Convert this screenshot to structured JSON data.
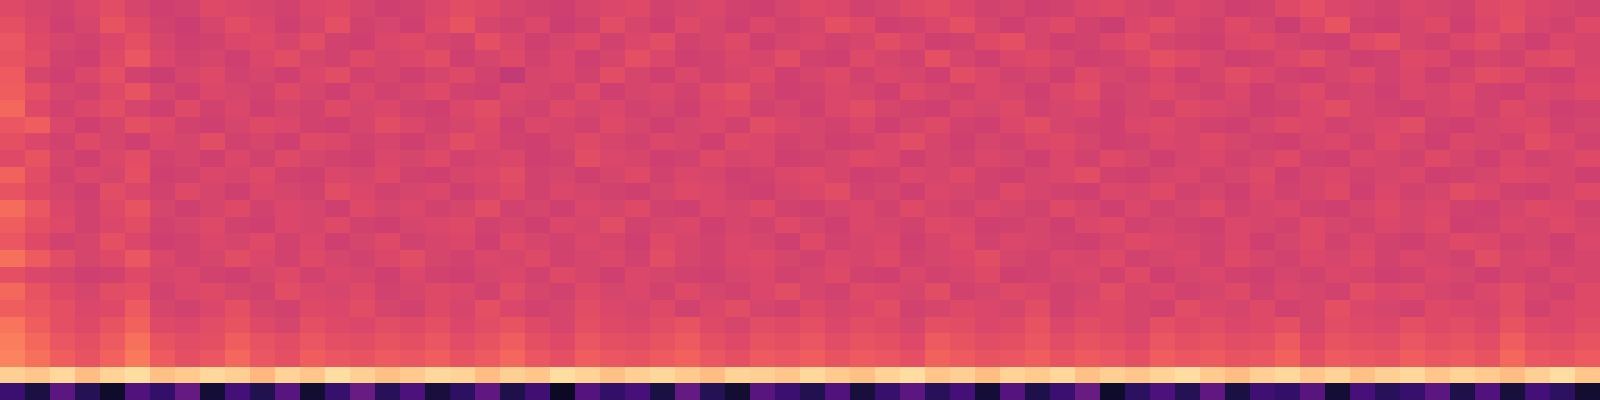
{
  "chart_data": {
    "type": "heatmap",
    "color": "magma",
    "tick_labels": false,
    "zlim": [
      0,
      100
    ],
    "z": [
      [
        60,
        58,
        57,
        59,
        61,
        58,
        56,
        57,
        60,
        59,
        58,
        57,
        59,
        60,
        58,
        56,
        57,
        59,
        61,
        60,
        58,
        57,
        56,
        58,
        59,
        60,
        57,
        58,
        59,
        57,
        56,
        58,
        60,
        59,
        57,
        58,
        60,
        61,
        59,
        57,
        58,
        56,
        57,
        59,
        60,
        58,
        57,
        59,
        58,
        56,
        57,
        60,
        62,
        59,
        58,
        57,
        59,
        58,
        57,
        60,
        61,
        59,
        58,
        57
      ],
      [
        62,
        59,
        56,
        58,
        63,
        60,
        57,
        55,
        58,
        61,
        59,
        56,
        58,
        62,
        57,
        58,
        56,
        60,
        63,
        58,
        57,
        59,
        55,
        57,
        61,
        58,
        56,
        60,
        58,
        56,
        59,
        57,
        58,
        62,
        60,
        56,
        57,
        59,
        62,
        58,
        56,
        58,
        60,
        57,
        55,
        59,
        61,
        58,
        57,
        60,
        58,
        55,
        59,
        63,
        57,
        56,
        58,
        60,
        56,
        59,
        62,
        58,
        57,
        60
      ],
      [
        64,
        60,
        58,
        57,
        59,
        62,
        58,
        56,
        57,
        59,
        60,
        58,
        61,
        57,
        56,
        59,
        60,
        58,
        57,
        62,
        59,
        56,
        58,
        60,
        57,
        59,
        61,
        57,
        58,
        60,
        56,
        58,
        59,
        57,
        58,
        61,
        59,
        56,
        57,
        60,
        62,
        58,
        56,
        57,
        59,
        61,
        58,
        57,
        56,
        59,
        60,
        58,
        57,
        56,
        60,
        62,
        58,
        57,
        59,
        61,
        58,
        56,
        59,
        58
      ],
      [
        63,
        61,
        57,
        56,
        60,
        64,
        59,
        57,
        58,
        56,
        59,
        61,
        58,
        57,
        60,
        58,
        59,
        61,
        56,
        58,
        60,
        57,
        59,
        56,
        58,
        62,
        59,
        56,
        57,
        59,
        58,
        61,
        57,
        56,
        60,
        58,
        57,
        62,
        58,
        56,
        59,
        60,
        58,
        56,
        57,
        59,
        62,
        60,
        58,
        56,
        57,
        59,
        61,
        58,
        56,
        57,
        60,
        59,
        56,
        58,
        57,
        60,
        61,
        58
      ],
      [
        65,
        58,
        56,
        59,
        62,
        57,
        55,
        58,
        60,
        57,
        58,
        56,
        59,
        61,
        57,
        58,
        56,
        58,
        60,
        57,
        53,
        58,
        59,
        57,
        61,
        58,
        56,
        59,
        57,
        58,
        60,
        56,
        58,
        60,
        57,
        59,
        58,
        56,
        61,
        59,
        57,
        58,
        56,
        60,
        58,
        57,
        59,
        56,
        58,
        61,
        59,
        57,
        56,
        58,
        60,
        57,
        59,
        56,
        58,
        61,
        60,
        57,
        56,
        59
      ],
      [
        66,
        62,
        58,
        57,
        60,
        63,
        58,
        56,
        59,
        58,
        57,
        60,
        58,
        56,
        59,
        57,
        58,
        60,
        57,
        56,
        59,
        58,
        57,
        60,
        56,
        58,
        59,
        57,
        60,
        62,
        58,
        56,
        57,
        59,
        58,
        56,
        60,
        58,
        57,
        59,
        58,
        56,
        59,
        61,
        57,
        58,
        60,
        58,
        57,
        59,
        56,
        58,
        60,
        57,
        58,
        56,
        59,
        58,
        60,
        57,
        56,
        59,
        58,
        60
      ],
      [
        68,
        60,
        57,
        59,
        61,
        58,
        56,
        60,
        57,
        59,
        56,
        58,
        57,
        60,
        58,
        59,
        57,
        56,
        59,
        61,
        58,
        57,
        60,
        58,
        59,
        57,
        58,
        56,
        59,
        60,
        57,
        58,
        56,
        59,
        61,
        58,
        57,
        56,
        59,
        58,
        60,
        57,
        58,
        59,
        56,
        58,
        57,
        60,
        59,
        58,
        56,
        57,
        59,
        61,
        58,
        57,
        56,
        58,
        59,
        57,
        60,
        58,
        56,
        57
      ],
      [
        64,
        66,
        59,
        56,
        58,
        62,
        60,
        57,
        56,
        58,
        60,
        59,
        57,
        56,
        58,
        61,
        59,
        57,
        58,
        60,
        56,
        59,
        58,
        57,
        60,
        58,
        56,
        58,
        59,
        57,
        61,
        59,
        58,
        57,
        59,
        56,
        58,
        60,
        57,
        56,
        59,
        61,
        58,
        57,
        56,
        59,
        60,
        58,
        57,
        56,
        58,
        60,
        59,
        57,
        58,
        59,
        61,
        57,
        56,
        58,
        59,
        60,
        57,
        58
      ],
      [
        62,
        59,
        57,
        60,
        58,
        56,
        59,
        58,
        61,
        57,
        58,
        56,
        60,
        59,
        57,
        58,
        56,
        58,
        61,
        59,
        57,
        56,
        58,
        60,
        58,
        57,
        59,
        58,
        56,
        60,
        59,
        57,
        58,
        56,
        57,
        59,
        61,
        58,
        56,
        58,
        57,
        59,
        60,
        58,
        56,
        57,
        59,
        58,
        60,
        58,
        57,
        56,
        58,
        59,
        57,
        60,
        58,
        56,
        59,
        58,
        57,
        61,
        59,
        57
      ],
      [
        60,
        63,
        58,
        56,
        59,
        61,
        57,
        58,
        56,
        59,
        57,
        60,
        58,
        57,
        56,
        59,
        58,
        60,
        57,
        58,
        59,
        56,
        57,
        61,
        59,
        58,
        56,
        57,
        60,
        58,
        59,
        56,
        57,
        58,
        60,
        59,
        56,
        58,
        57,
        59,
        58,
        56,
        59,
        57,
        60,
        58,
        56,
        58,
        59,
        57,
        58,
        60,
        57,
        56,
        59,
        58,
        57,
        60,
        58,
        56,
        59,
        57,
        58,
        60
      ],
      [
        67,
        61,
        57,
        59,
        58,
        62,
        56,
        57,
        59,
        58,
        60,
        57,
        56,
        59,
        58,
        60,
        57,
        56,
        58,
        59,
        61,
        57,
        58,
        56,
        58,
        60,
        57,
        59,
        58,
        56,
        57,
        59,
        60,
        58,
        56,
        57,
        59,
        58,
        60,
        57,
        56,
        58,
        59,
        61,
        57,
        56,
        58,
        59,
        57,
        58,
        60,
        56,
        58,
        59,
        57,
        58,
        59,
        56,
        57,
        58,
        60,
        59,
        58,
        56
      ],
      [
        63,
        60,
        58,
        56,
        61,
        59,
        57,
        60,
        58,
        56,
        59,
        58,
        57,
        61,
        59,
        57,
        58,
        59,
        56,
        58,
        60,
        57,
        59,
        58,
        57,
        56,
        58,
        60,
        59,
        57,
        56,
        58,
        59,
        61,
        57,
        58,
        56,
        59,
        58,
        57,
        60,
        58,
        57,
        56,
        59,
        58,
        60,
        57,
        58,
        56,
        59,
        57,
        58,
        60,
        56,
        59,
        57,
        58,
        61,
        59,
        57,
        56,
        58,
        60
      ],
      [
        69,
        64,
        59,
        57,
        60,
        63,
        58,
        56,
        58,
        60,
        57,
        59,
        58,
        56,
        60,
        58,
        59,
        57,
        58,
        61,
        57,
        58,
        56,
        59,
        58,
        60,
        57,
        56,
        59,
        58,
        60,
        57,
        56,
        58,
        59,
        57,
        60,
        58,
        57,
        59,
        58,
        57,
        60,
        58,
        56,
        59,
        57,
        58,
        60,
        57,
        58,
        59,
        57,
        56,
        58,
        60,
        58,
        59,
        57,
        56,
        58,
        60,
        59,
        57
      ],
      [
        66,
        62,
        60,
        57,
        59,
        61,
        57,
        58,
        60,
        57,
        56,
        59,
        58,
        60,
        57,
        56,
        58,
        59,
        60,
        57,
        58,
        56,
        59,
        58,
        61,
        57,
        58,
        59,
        56,
        58,
        57,
        60,
        58,
        56,
        59,
        58,
        57,
        60,
        59,
        56,
        57,
        58,
        56,
        59,
        60,
        57,
        58,
        57,
        56,
        59,
        58,
        57,
        60,
        58,
        57,
        59,
        58,
        60,
        56,
        57,
        59,
        58,
        60,
        58
      ],
      [
        64,
        60,
        57,
        58,
        62,
        59,
        56,
        57,
        59,
        58,
        60,
        57,
        59,
        56,
        58,
        60,
        57,
        58,
        59,
        56,
        60,
        58,
        57,
        59,
        58,
        56,
        60,
        58,
        57,
        59,
        58,
        56,
        60,
        57,
        58,
        59,
        56,
        58,
        60,
        57,
        59,
        58,
        57,
        56,
        58,
        60,
        59,
        58,
        57,
        59,
        56,
        58,
        60,
        57,
        59,
        57,
        56,
        58,
        60,
        59,
        57,
        58,
        56,
        59
      ],
      [
        70,
        65,
        61,
        58,
        60,
        64,
        59,
        57,
        58,
        61,
        59,
        57,
        60,
        58,
        57,
        59,
        61,
        58,
        57,
        59,
        58,
        60,
        57,
        58,
        59,
        57,
        61,
        58,
        57,
        59,
        60,
        58,
        57,
        59,
        58,
        60,
        57,
        58,
        59,
        61,
        58,
        57,
        59,
        58,
        60,
        57,
        58,
        59,
        57,
        60,
        58,
        57,
        59,
        58,
        60,
        57,
        59,
        58,
        57,
        61,
        58,
        59,
        57,
        58
      ],
      [
        62,
        59,
        58,
        56,
        57,
        60,
        58,
        59,
        57,
        56,
        58,
        60,
        57,
        59,
        58,
        56,
        59,
        57,
        56,
        58,
        59,
        57,
        60,
        58,
        56,
        59,
        58,
        57,
        56,
        58,
        59,
        57,
        58,
        60,
        57,
        56,
        59,
        57,
        58,
        60,
        56,
        57,
        58,
        59,
        57,
        60,
        56,
        58,
        59,
        57,
        56,
        58,
        57,
        59,
        58,
        56,
        57,
        59,
        58,
        56,
        58,
        57,
        59,
        58
      ],
      [
        68,
        63,
        60,
        58,
        61,
        62,
        57,
        59,
        60,
        58,
        57,
        61,
        59,
        58,
        60,
        57,
        58,
        60,
        59,
        57,
        61,
        58,
        57,
        60,
        58,
        59,
        57,
        60,
        58,
        57,
        59,
        61,
        58,
        57,
        60,
        59,
        58,
        61,
        57,
        58,
        60,
        59,
        57,
        58,
        61,
        58,
        59,
        57,
        58,
        60,
        57,
        59,
        58,
        57,
        61,
        59,
        60,
        58,
        57,
        59,
        61,
        58,
        57,
        60
      ],
      [
        66,
        64,
        62,
        59,
        60,
        65,
        58,
        57,
        59,
        62,
        58,
        57,
        60,
        59,
        61,
        58,
        57,
        60,
        58,
        62,
        59,
        57,
        58,
        61,
        59,
        58,
        60,
        57,
        59,
        61,
        58,
        57,
        60,
        58,
        59,
        61,
        57,
        58,
        60,
        59,
        58,
        61,
        57,
        59,
        60,
        58,
        57,
        61,
        59,
        58,
        60,
        57,
        58,
        62,
        59,
        58,
        57,
        60,
        59,
        58,
        61,
        57,
        59,
        60
      ],
      [
        71,
        66,
        62,
        60,
        63,
        67,
        60,
        59,
        61,
        63,
        60,
        58,
        62,
        60,
        59,
        61,
        60,
        62,
        59,
        61,
        63,
        60,
        58,
        62,
        60,
        59,
        61,
        63,
        60,
        58,
        61,
        60,
        62,
        59,
        61,
        60,
        58,
        62,
        61,
        59,
        60,
        63,
        59,
        61,
        60,
        58,
        62,
        60,
        61,
        59,
        60,
        62,
        58,
        61,
        60,
        59,
        62,
        60,
        61,
        59,
        63,
        60,
        59,
        61
      ],
      [
        73,
        68,
        64,
        62,
        65,
        70,
        63,
        61,
        62,
        66,
        63,
        61,
        64,
        62,
        61,
        63,
        62,
        64,
        61,
        63,
        66,
        62,
        60,
        64,
        62,
        61,
        63,
        65,
        62,
        60,
        63,
        62,
        64,
        61,
        63,
        62,
        60,
        65,
        63,
        61,
        62,
        64,
        61,
        63,
        62,
        60,
        64,
        62,
        63,
        61,
        62,
        65,
        60,
        63,
        62,
        61,
        64,
        62,
        63,
        61,
        66,
        62,
        61,
        63
      ],
      [
        74,
        70,
        66,
        63,
        67,
        72,
        65,
        62,
        64,
        68,
        64,
        62,
        66,
        64,
        63,
        65,
        64,
        66,
        63,
        65,
        68,
        64,
        62,
        66,
        64,
        63,
        65,
        67,
        64,
        62,
        65,
        64,
        66,
        63,
        65,
        64,
        62,
        67,
        65,
        63,
        64,
        66,
        63,
        65,
        64,
        62,
        66,
        64,
        65,
        63,
        64,
        67,
        62,
        65,
        64,
        63,
        66,
        64,
        65,
        63,
        68,
        64,
        63,
        65
      ],
      [
        90,
        88,
        92,
        86,
        91,
        93,
        87,
        89,
        92,
        90,
        85,
        91,
        88,
        93,
        90,
        87,
        89,
        92,
        91,
        86,
        90,
        88,
        93,
        91,
        87,
        90,
        92,
        89,
        86,
        91,
        90,
        88,
        92,
        89,
        87,
        91,
        93,
        88,
        90,
        86,
        91,
        89,
        92,
        87,
        90,
        88,
        91,
        93,
        89,
        86,
        90,
        92,
        88,
        91,
        87,
        90,
        92,
        88,
        91,
        89,
        86,
        90,
        93,
        88
      ],
      [
        20,
        12,
        28,
        15,
        8,
        25,
        18,
        30,
        10,
        22,
        14,
        27,
        9,
        19,
        31,
        16,
        24,
        11,
        17,
        29,
        13,
        21,
        7,
        26,
        18,
        23,
        12,
        30,
        15,
        9,
        27,
        20,
        14,
        25,
        11,
        19,
        28,
        16,
        22,
        10,
        26,
        13,
        20,
        31,
        8,
        17,
        24,
        15,
        29,
        12,
        21,
        18,
        27,
        10,
        23,
        16,
        19,
        28,
        13,
        25,
        11,
        22,
        17,
        9
      ]
    ]
  }
}
